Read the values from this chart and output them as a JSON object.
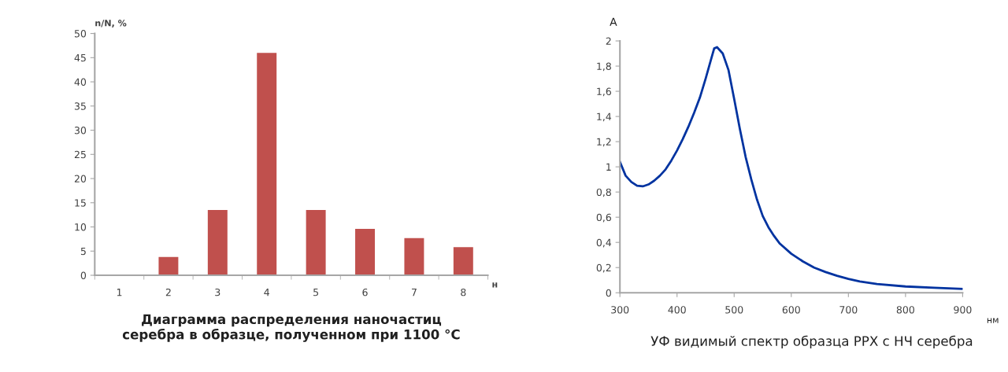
{
  "chart_data": [
    {
      "type": "bar",
      "title": "Диаграмма распределения наночастиц\nсеребра в образце, полученном при 1100 °C",
      "ylabel": "n/N, %",
      "xlabel": "н",
      "categories": [
        "1",
        "2",
        "3",
        "4",
        "5",
        "6",
        "7",
        "8"
      ],
      "values": [
        0,
        3.8,
        13.5,
        46,
        13.5,
        9.6,
        7.7,
        5.8
      ],
      "color": "#c0504d",
      "ylim": [
        0,
        50
      ],
      "yticks": [
        0,
        5,
        10,
        15,
        20,
        25,
        30,
        35,
        40,
        45,
        50
      ],
      "grid": false,
      "legend": false
    },
    {
      "type": "line",
      "title": "УФ видимый спектр образца РРХ с НЧ серебра",
      "ylabel": "A",
      "xlabel": "нм",
      "x": [
        300,
        310,
        320,
        330,
        340,
        350,
        360,
        370,
        380,
        390,
        400,
        410,
        420,
        430,
        440,
        450,
        460,
        465,
        470,
        480,
        490,
        500,
        510,
        520,
        530,
        540,
        550,
        560,
        570,
        580,
        600,
        620,
        640,
        660,
        680,
        700,
        720,
        750,
        800,
        850,
        900
      ],
      "series": [
        {
          "color": "#0033a0",
          "values": [
            1.04,
            0.93,
            0.88,
            0.85,
            0.845,
            0.86,
            0.89,
            0.93,
            0.98,
            1.05,
            1.13,
            1.22,
            1.32,
            1.43,
            1.55,
            1.7,
            1.86,
            1.94,
            1.95,
            1.9,
            1.77,
            1.54,
            1.3,
            1.08,
            0.9,
            0.74,
            0.61,
            0.52,
            0.45,
            0.39,
            0.31,
            0.25,
            0.2,
            0.165,
            0.135,
            0.11,
            0.09,
            0.07,
            0.05,
            0.04,
            0.03
          ]
        }
      ],
      "xlim": [
        300,
        900
      ],
      "xticks": [
        300,
        400,
        500,
        600,
        700,
        800,
        900
      ],
      "ylim": [
        0,
        2
      ],
      "yticks": [
        0,
        {
          "value": 0.2,
          "label": "0,2"
        },
        {
          "value": 0.4,
          "label": "0,4"
        },
        {
          "value": 0.6,
          "label": "0,6"
        },
        {
          "value": 0.8,
          "label": "0,8"
        },
        1,
        {
          "value": 1.2,
          "label": "1,2"
        },
        {
          "value": 1.4,
          "label": "1,4"
        },
        {
          "value": 1.6,
          "label": "1,6"
        },
        {
          "value": 1.8,
          "label": "1,8"
        },
        2
      ],
      "grid": false,
      "legend": false,
      "marker": "none",
      "line_style": "solid"
    }
  ]
}
